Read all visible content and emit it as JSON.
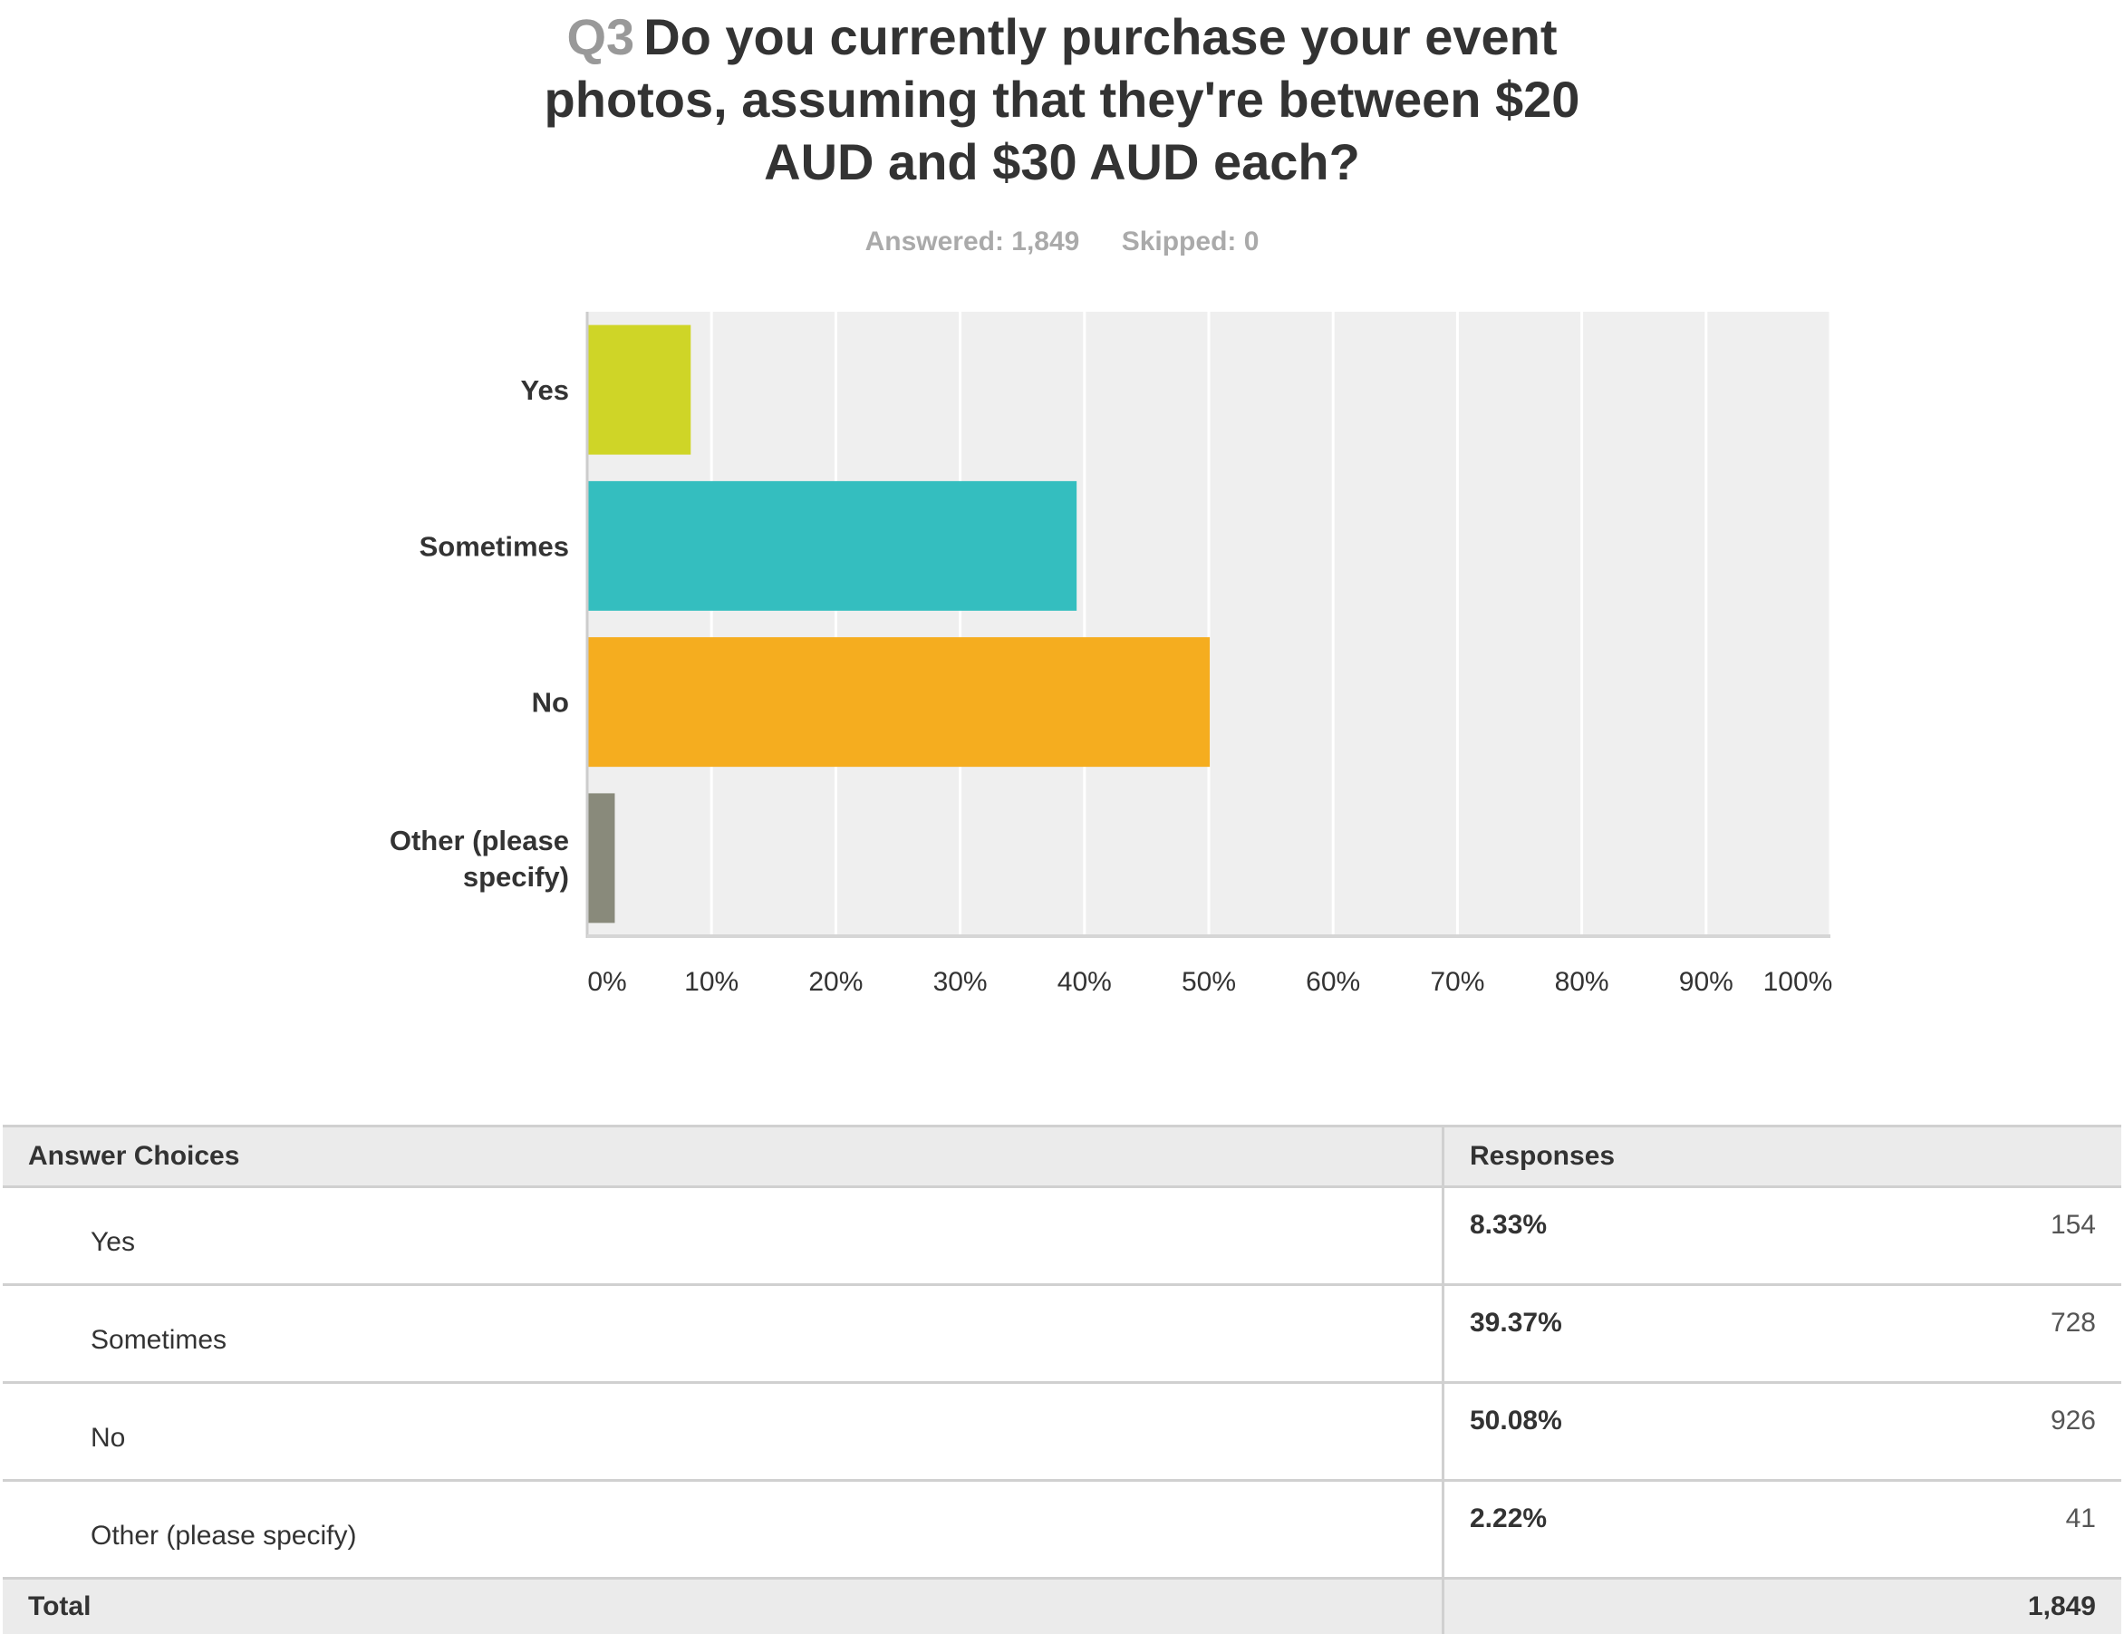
{
  "question": {
    "number": "Q3",
    "line1": "Do you currently purchase your event",
    "line2": "photos, assuming that they're between $20",
    "line3": "AUD and $30 AUD each?"
  },
  "stats": {
    "answered": "Answered: 1,849",
    "skipped": "Skipped: 0"
  },
  "colors": {
    "yes": "#cfd527",
    "sometimes": "#34bebf",
    "no": "#f5ad1f",
    "other": "#898a7b",
    "plot_bg": "#efefef"
  },
  "chart_data": {
    "type": "bar",
    "orientation": "horizontal",
    "categories": [
      "Yes",
      "Sometimes",
      "No",
      "Other (please specify)"
    ],
    "category_label_lines": [
      [
        "Yes"
      ],
      [
        "Sometimes"
      ],
      [
        "No"
      ],
      [
        "Other (please",
        "specify)"
      ]
    ],
    "values": [
      8.33,
      39.37,
      50.08,
      2.22
    ],
    "xlim": [
      0,
      100
    ],
    "xticks": [
      "0%",
      "10%",
      "20%",
      "30%",
      "40%",
      "50%",
      "60%",
      "70%",
      "80%",
      "90%",
      "100%"
    ],
    "grid": true,
    "legend": "none"
  },
  "table": {
    "headers": [
      "Answer Choices",
      "Responses"
    ],
    "rows": [
      {
        "choice": "Yes",
        "percent": "8.33%",
        "count": "154"
      },
      {
        "choice": "Sometimes",
        "percent": "39.37%",
        "count": "728"
      },
      {
        "choice": "No",
        "percent": "50.08%",
        "count": "926"
      },
      {
        "choice": "Other (please specify)",
        "percent": "2.22%",
        "count": "41"
      }
    ],
    "total_label": "Total",
    "total_value": "1,849"
  }
}
